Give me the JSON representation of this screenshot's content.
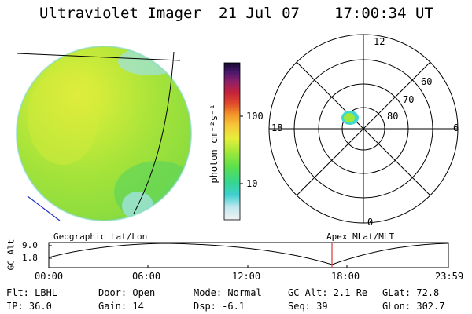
{
  "header": {
    "title": "Ultraviolet Imager",
    "date": "21 Jul 07",
    "time": "17:00:34 UT"
  },
  "colorbar": {
    "unit_label": "photon cm⁻²s⁻¹",
    "ticks": [
      "100",
      "10"
    ]
  },
  "polar": {
    "mlt_labels": [
      "12",
      "18",
      "6",
      "0"
    ],
    "lat_labels": [
      "60",
      "70",
      "80"
    ]
  },
  "timeline": {
    "ylabel": "GC Alt",
    "y_ticks": [
      "9.0",
      "1.8"
    ],
    "left_caption": "Geographic Lat/Lon",
    "right_caption": "Apex MLat/MLT",
    "x_ticks": [
      "00:00",
      "06:00",
      "12:00",
      "18:00",
      "23:59"
    ],
    "current_time": "17:00"
  },
  "status": {
    "flt": "Flt: LBHL",
    "ip": "IP: 36.0",
    "door": "Door: Open",
    "gain": "Gain: 14",
    "mode": "Mode: Normal",
    "dsp": "Dsp:   -6.1",
    "gc_alt": "GC Alt: 2.1 Re",
    "seq": "Seq: 39",
    "glat": "GLat:  72.8",
    "glon": "GLon: 302.7"
  },
  "colors": {
    "green": "#9ee63a",
    "cyan": "#3fd8d0",
    "yellow": "#e6ec3a",
    "marker": "#d63a3a",
    "blue_line": "#2233cc"
  }
}
